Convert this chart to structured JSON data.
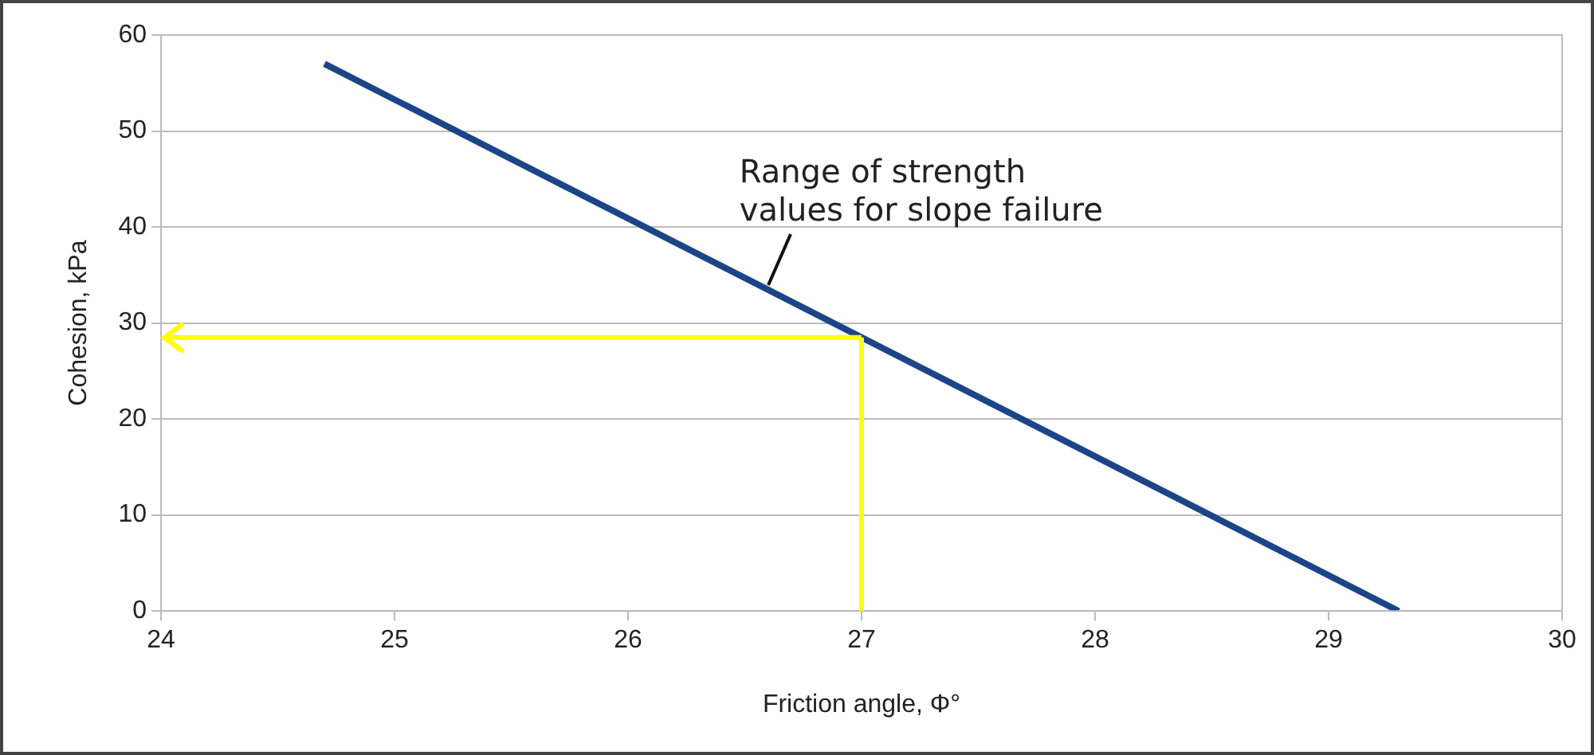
{
  "chart_data": {
    "type": "line",
    "xlabel": "Friction angle, Φ°",
    "ylabel": "Cohesion, kPa",
    "xlim": [
      24,
      30
    ],
    "xticks": [
      24,
      25,
      26,
      27,
      28,
      29,
      30
    ],
    "ylim": [
      0,
      60
    ],
    "yticks": [
      0,
      10,
      20,
      30,
      40,
      50,
      60
    ],
    "grid": "y",
    "marker": "none",
    "series": [
      {
        "color": "#1c4587",
        "x": [
          24.7,
          29.3
        ],
        "values": [
          57,
          0
        ]
      }
    ],
    "ref_lines": [
      {
        "axis": "x",
        "value": 27,
        "color": "#ffff00"
      },
      {
        "axis": "y",
        "value": 28.5,
        "color": "#ffff00"
      }
    ],
    "annotations": [
      {
        "text": "Range of strength values for slope failure",
        "x": 26.6,
        "y": 34
      }
    ]
  }
}
